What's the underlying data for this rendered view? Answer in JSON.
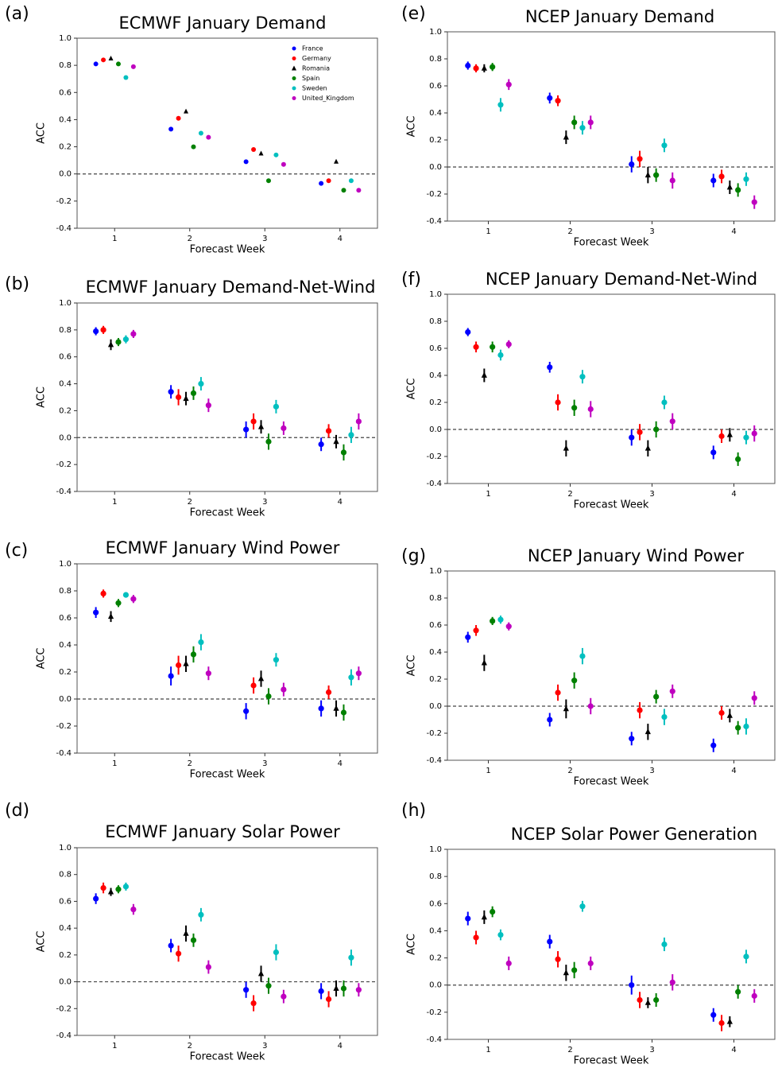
{
  "chart_data": [
    {
      "type": "scatter",
      "label": "(a)",
      "title": "ECMWF January Demand",
      "xlabel": "Forecast Week",
      "ylabel": "ACC",
      "x": [
        1,
        2,
        3,
        4
      ],
      "xlim": [
        0.5,
        4.5
      ],
      "xticks": [
        1,
        2,
        3,
        4
      ],
      "ylim": [
        -0.4,
        1
      ],
      "yticks": [
        -0.4,
        -0.2,
        {
          "value": 0,
          "label": "0.0"
        },
        0.2,
        0.4,
        0.6,
        0.8,
        {
          "value": 1,
          "label": "1.0"
        }
      ],
      "reference_line": 0,
      "legend": "upper right",
      "series": [
        {
          "name": "France",
          "color": "#0000ff",
          "marker": "circle",
          "values": [
            0.81,
            0.33,
            0.09,
            -0.07
          ]
        },
        {
          "name": "Germany",
          "color": "#ff0000",
          "marker": "circle",
          "values": [
            0.84,
            0.41,
            0.18,
            -0.05
          ]
        },
        {
          "name": "Romania",
          "color": "#000000",
          "marker": "triangle",
          "values": [
            0.85,
            0.46,
            0.15,
            0.09
          ]
        },
        {
          "name": "Spain",
          "color": "#008000",
          "marker": "circle",
          "values": [
            0.81,
            0.2,
            -0.05,
            -0.12
          ]
        },
        {
          "name": "Sweden",
          "color": "#00bfbf",
          "marker": "circle",
          "values": [
            0.71,
            0.3,
            0.14,
            -0.05
          ]
        },
        {
          "name": "United_Kingdom",
          "color": "#bf00bf",
          "marker": "circle",
          "values": [
            0.79,
            0.27,
            0.07,
            -0.12
          ]
        }
      ]
    },
    {
      "type": "scatter",
      "label": "(b)",
      "title": "ECMWF January Demand-Net-Wind",
      "xlabel": "Forecast Week",
      "ylabel": "ACC",
      "x": [
        1,
        2,
        3,
        4
      ],
      "xlim": [
        0.5,
        4.5
      ],
      "xticks": [
        1,
        2,
        3,
        4
      ],
      "ylim": [
        -0.4,
        1
      ],
      "yticks": [
        -0.4,
        -0.2,
        {
          "value": 0,
          "label": "0.0"
        },
        0.2,
        0.4,
        0.6,
        0.8,
        {
          "value": 1,
          "label": "1.0"
        }
      ],
      "reference_line": 0,
      "series": [
        {
          "color": "#0000ff",
          "marker": "circle",
          "values": [
            0.79,
            0.34,
            0.06,
            -0.05
          ],
          "errors": [
            0.03,
            0.05,
            0.06,
            0.05
          ]
        },
        {
          "color": "#ff0000",
          "marker": "circle",
          "values": [
            0.8,
            0.3,
            0.12,
            0.05
          ],
          "errors": [
            0.03,
            0.06,
            0.06,
            0.05
          ]
        },
        {
          "color": "#000000",
          "marker": "triangle",
          "values": [
            0.69,
            0.29,
            0.08,
            -0.03
          ],
          "errors": [
            0.04,
            0.05,
            0.05,
            0.05
          ]
        },
        {
          "color": "#008000",
          "marker": "circle",
          "values": [
            0.71,
            0.33,
            -0.03,
            -0.11
          ],
          "errors": [
            0.03,
            0.05,
            0.06,
            0.06
          ]
        },
        {
          "color": "#00bfbf",
          "marker": "circle",
          "values": [
            0.73,
            0.4,
            0.23,
            0.02
          ],
          "errors": [
            0.03,
            0.05,
            0.05,
            0.06
          ]
        },
        {
          "color": "#bf00bf",
          "marker": "circle",
          "values": [
            0.77,
            0.24,
            0.07,
            0.12
          ],
          "errors": [
            0.03,
            0.05,
            0.05,
            0.06
          ]
        }
      ]
    },
    {
      "type": "scatter",
      "label": "(c)",
      "title": "ECMWF January Wind Power",
      "xlabel": "Forecast Week",
      "ylabel": "ACC",
      "x": [
        1,
        2,
        3,
        4
      ],
      "xlim": [
        0.5,
        4.5
      ],
      "xticks": [
        1,
        2,
        3,
        4
      ],
      "ylim": [
        -0.4,
        1
      ],
      "yticks": [
        -0.4,
        -0.2,
        {
          "value": 0,
          "label": "0.0"
        },
        0.2,
        0.4,
        0.6,
        0.8,
        {
          "value": 1,
          "label": "1.0"
        }
      ],
      "reference_line": 0,
      "series": [
        {
          "color": "#0000ff",
          "marker": "circle",
          "values": [
            0.64,
            0.17,
            -0.09,
            -0.07
          ],
          "errors": [
            0.04,
            0.07,
            0.06,
            0.06
          ]
        },
        {
          "color": "#ff0000",
          "marker": "circle",
          "values": [
            0.78,
            0.25,
            0.1,
            0.05
          ],
          "errors": [
            0.03,
            0.07,
            0.06,
            0.05
          ]
        },
        {
          "color": "#000000",
          "marker": "triangle",
          "values": [
            0.61,
            0.26,
            0.15,
            -0.07
          ],
          "errors": [
            0.04,
            0.06,
            0.06,
            0.06
          ]
        },
        {
          "color": "#008000",
          "marker": "circle",
          "values": [
            0.71,
            0.33,
            0.02,
            -0.1
          ],
          "errors": [
            0.03,
            0.06,
            0.06,
            0.06
          ]
        },
        {
          "color": "#00bfbf",
          "marker": "circle",
          "values": [
            0.77,
            0.42,
            0.29,
            0.16
          ],
          "errors": [
            0.02,
            0.06,
            0.05,
            0.06
          ]
        },
        {
          "color": "#bf00bf",
          "marker": "circle",
          "values": [
            0.74,
            0.19,
            0.07,
            0.19
          ],
          "errors": [
            0.03,
            0.05,
            0.05,
            0.05
          ]
        }
      ]
    },
    {
      "type": "scatter",
      "label": "(d)",
      "title": "ECMWF January Solar Power",
      "xlabel": "Forecast Week",
      "ylabel": "ACC",
      "x": [
        1,
        2,
        3,
        4
      ],
      "xlim": [
        0.5,
        4.5
      ],
      "xticks": [
        1,
        2,
        3,
        4
      ],
      "ylim": [
        -0.4,
        1
      ],
      "yticks": [
        -0.4,
        -0.2,
        {
          "value": 0,
          "label": "0.0"
        },
        0.2,
        0.4,
        0.6,
        0.8,
        {
          "value": 1,
          "label": "1.0"
        }
      ],
      "reference_line": 0,
      "series": [
        {
          "color": "#0000ff",
          "marker": "circle",
          "values": [
            0.62,
            0.27,
            -0.06,
            -0.07
          ],
          "errors": [
            0.04,
            0.05,
            0.06,
            0.06
          ]
        },
        {
          "color": "#ff0000",
          "marker": "circle",
          "values": [
            0.7,
            0.21,
            -0.16,
            -0.13
          ],
          "errors": [
            0.04,
            0.06,
            0.06,
            0.06
          ]
        },
        {
          "color": "#000000",
          "marker": "triangle",
          "values": [
            0.67,
            0.36,
            0.06,
            -0.05
          ],
          "errors": [
            0.03,
            0.06,
            0.06,
            0.06
          ]
        },
        {
          "color": "#008000",
          "marker": "circle",
          "values": [
            0.69,
            0.31,
            -0.03,
            -0.05
          ],
          "errors": [
            0.03,
            0.05,
            0.06,
            0.06
          ]
        },
        {
          "color": "#00bfbf",
          "marker": "circle",
          "values": [
            0.71,
            0.5,
            0.22,
            0.18
          ],
          "errors": [
            0.03,
            0.05,
            0.06,
            0.06
          ]
        },
        {
          "color": "#bf00bf",
          "marker": "circle",
          "values": [
            0.54,
            0.11,
            -0.11,
            -0.06
          ],
          "errors": [
            0.04,
            0.05,
            0.05,
            0.05
          ]
        }
      ]
    },
    {
      "type": "scatter",
      "label": "(e)",
      "title": "NCEP January Demand",
      "xlabel": "Forecast Week",
      "ylabel": "ACC",
      "x": [
        1,
        2,
        3,
        4
      ],
      "xlim": [
        0.5,
        4.5
      ],
      "xticks": [
        1,
        2,
        3,
        4
      ],
      "ylim": [
        -0.4,
        1
      ],
      "yticks": [
        -0.4,
        -0.2,
        {
          "value": 0,
          "label": "0.0"
        },
        0.2,
        0.4,
        0.6,
        0.8,
        {
          "value": 1,
          "label": "1.0"
        }
      ],
      "reference_line": 0,
      "series": [
        {
          "color": "#0000ff",
          "marker": "circle",
          "values": [
            0.75,
            0.51,
            0.02,
            -0.1
          ],
          "errors": [
            0.03,
            0.04,
            0.06,
            0.05
          ]
        },
        {
          "color": "#ff0000",
          "marker": "circle",
          "values": [
            0.73,
            0.49,
            0.06,
            -0.07
          ],
          "errors": [
            0.03,
            0.04,
            0.06,
            0.05
          ]
        },
        {
          "color": "#000000",
          "marker": "triangle",
          "values": [
            0.73,
            0.22,
            -0.06,
            -0.15
          ],
          "errors": [
            0.03,
            0.05,
            0.06,
            0.05
          ]
        },
        {
          "color": "#008000",
          "marker": "circle",
          "values": [
            0.74,
            0.33,
            -0.06,
            -0.17
          ],
          "errors": [
            0.03,
            0.05,
            0.05,
            0.05
          ]
        },
        {
          "color": "#00bfbf",
          "marker": "circle",
          "values": [
            0.46,
            0.29,
            0.16,
            -0.09
          ],
          "errors": [
            0.05,
            0.05,
            0.05,
            0.05
          ]
        },
        {
          "color": "#bf00bf",
          "marker": "circle",
          "values": [
            0.61,
            0.33,
            -0.1,
            -0.26
          ],
          "errors": [
            0.04,
            0.05,
            0.06,
            0.05
          ]
        }
      ]
    },
    {
      "type": "scatter",
      "label": "(f)",
      "title": "NCEP January Demand-Net-Wind",
      "xlabel": "Forecast Week",
      "ylabel": "ACC",
      "x": [
        1,
        2,
        3,
        4
      ],
      "xlim": [
        0.5,
        4.5
      ],
      "xticks": [
        1,
        2,
        3,
        4
      ],
      "ylim": [
        -0.4,
        1
      ],
      "yticks": [
        -0.4,
        -0.2,
        {
          "value": 0,
          "label": "0.0"
        },
        0.2,
        0.4,
        0.6,
        0.8,
        {
          "value": 1,
          "label": "1.0"
        }
      ],
      "reference_line": 0,
      "series": [
        {
          "color": "#0000ff",
          "marker": "circle",
          "values": [
            0.72,
            0.46,
            -0.06,
            -0.17
          ],
          "errors": [
            0.03,
            0.04,
            0.06,
            0.05
          ]
        },
        {
          "color": "#ff0000",
          "marker": "circle",
          "values": [
            0.61,
            0.2,
            -0.02,
            -0.05
          ],
          "errors": [
            0.04,
            0.06,
            0.06,
            0.05
          ]
        },
        {
          "color": "#000000",
          "marker": "triangle",
          "values": [
            0.4,
            -0.14,
            -0.14,
            -0.04
          ],
          "errors": [
            0.05,
            0.06,
            0.06,
            0.05
          ]
        },
        {
          "color": "#008000",
          "marker": "circle",
          "values": [
            0.61,
            0.16,
            0.0,
            -0.22
          ],
          "errors": [
            0.04,
            0.06,
            0.06,
            0.05
          ]
        },
        {
          "color": "#00bfbf",
          "marker": "circle",
          "values": [
            0.55,
            0.39,
            0.2,
            -0.06
          ],
          "errors": [
            0.04,
            0.05,
            0.05,
            0.05
          ]
        },
        {
          "color": "#bf00bf",
          "marker": "circle",
          "values": [
            0.63,
            0.15,
            0.06,
            -0.03
          ],
          "errors": [
            0.03,
            0.06,
            0.06,
            0.06
          ]
        }
      ]
    },
    {
      "type": "scatter",
      "label": "(g)",
      "title": "NCEP January Wind Power",
      "xlabel": "Forecast Week",
      "ylabel": "ACC",
      "x": [
        1,
        2,
        3,
        4
      ],
      "xlim": [
        0.5,
        4.5
      ],
      "xticks": [
        1,
        2,
        3,
        4
      ],
      "ylim": [
        -0.4,
        1
      ],
      "yticks": [
        -0.4,
        -0.2,
        {
          "value": 0,
          "label": "0.0"
        },
        0.2,
        0.4,
        0.6,
        0.8,
        {
          "value": 1,
          "label": "1.0"
        }
      ],
      "reference_line": 0,
      "series": [
        {
          "color": "#0000ff",
          "marker": "circle",
          "values": [
            0.51,
            -0.1,
            -0.24,
            -0.29
          ],
          "errors": [
            0.04,
            0.05,
            0.05,
            0.05
          ]
        },
        {
          "color": "#ff0000",
          "marker": "circle",
          "values": [
            0.56,
            0.1,
            -0.03,
            -0.05
          ],
          "errors": [
            0.04,
            0.06,
            0.06,
            0.05
          ]
        },
        {
          "color": "#000000",
          "marker": "triangle",
          "values": [
            0.32,
            -0.02,
            -0.19,
            -0.07
          ],
          "errors": [
            0.06,
            0.07,
            0.06,
            0.05
          ]
        },
        {
          "color": "#008000",
          "marker": "circle",
          "values": [
            0.63,
            0.19,
            0.07,
            -0.16
          ],
          "errors": [
            0.03,
            0.06,
            0.05,
            0.05
          ]
        },
        {
          "color": "#00bfbf",
          "marker": "circle",
          "values": [
            0.64,
            0.37,
            -0.08,
            -0.15
          ],
          "errors": [
            0.03,
            0.06,
            0.06,
            0.06
          ]
        },
        {
          "color": "#bf00bf",
          "marker": "circle",
          "values": [
            0.59,
            0.0,
            0.11,
            0.06
          ],
          "errors": [
            0.03,
            0.06,
            0.05,
            0.05
          ]
        }
      ]
    },
    {
      "type": "scatter",
      "label": "(h)",
      "title": "NCEP Solar Power Generation",
      "xlabel": "Forecast Week",
      "ylabel": "ACC",
      "x": [
        1,
        2,
        3,
        4
      ],
      "xlim": [
        0.5,
        4.5
      ],
      "xticks": [
        1,
        2,
        3,
        4
      ],
      "ylim": [
        -0.4,
        1
      ],
      "yticks": [
        -0.4,
        -0.2,
        {
          "value": 0,
          "label": "0.0"
        },
        0.2,
        0.4,
        0.6,
        0.8,
        {
          "value": 1,
          "label": "1.0"
        }
      ],
      "reference_line": 0,
      "series": [
        {
          "color": "#0000ff",
          "marker": "circle",
          "values": [
            0.49,
            0.32,
            0.0,
            -0.22
          ],
          "errors": [
            0.05,
            0.05,
            0.07,
            0.05
          ]
        },
        {
          "color": "#ff0000",
          "marker": "circle",
          "values": [
            0.35,
            0.19,
            -0.11,
            -0.28
          ],
          "errors": [
            0.05,
            0.06,
            0.06,
            0.06
          ]
        },
        {
          "color": "#000000",
          "marker": "triangle",
          "values": [
            0.5,
            0.09,
            -0.13,
            -0.27
          ],
          "errors": [
            0.05,
            0.06,
            0.04,
            0.04
          ]
        },
        {
          "color": "#008000",
          "marker": "circle",
          "values": [
            0.54,
            0.11,
            -0.11,
            -0.05
          ],
          "errors": [
            0.04,
            0.06,
            0.05,
            0.05
          ]
        },
        {
          "color": "#00bfbf",
          "marker": "circle",
          "values": [
            0.37,
            0.58,
            0.3,
            0.21
          ],
          "errors": [
            0.04,
            0.04,
            0.05,
            0.05
          ]
        },
        {
          "color": "#bf00bf",
          "marker": "circle",
          "values": [
            0.16,
            0.16,
            0.02,
            -0.08
          ],
          "errors": [
            0.05,
            0.05,
            0.06,
            0.05
          ]
        }
      ]
    }
  ]
}
